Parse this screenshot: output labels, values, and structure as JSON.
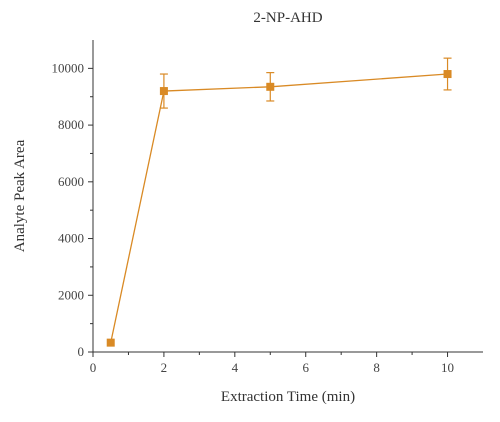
{
  "chart_data": {
    "type": "line",
    "title": "2-NP-AHD",
    "xlabel": "Extraction Time (min)",
    "ylabel": "Analyte Peak Area",
    "xlim": [
      0,
      11
    ],
    "ylim": [
      0,
      11000
    ],
    "xticks": [
      0,
      2,
      4,
      6,
      8,
      10
    ],
    "yticks": [
      0,
      2000,
      4000,
      6000,
      8000,
      10000
    ],
    "grid": false,
    "color": "#d98a25",
    "series": [
      {
        "marker": "square",
        "x": [
          0.5,
          2,
          5,
          10
        ],
        "y": [
          330,
          9200,
          9350,
          9800
        ],
        "yerr": [
          0,
          600,
          500,
          560
        ]
      }
    ]
  }
}
